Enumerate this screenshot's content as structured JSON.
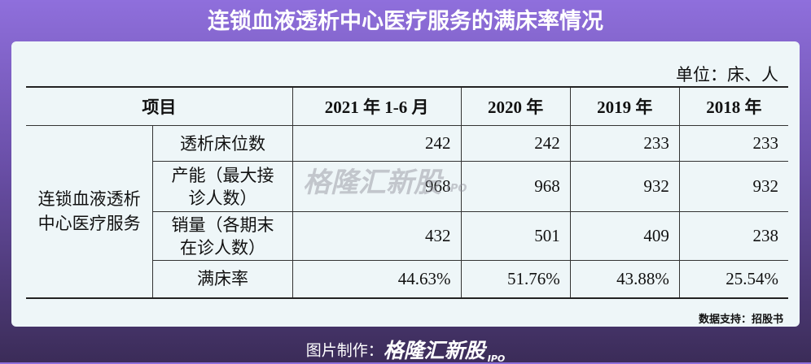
{
  "title": "连锁血液透析中心医疗服务的满床率情况",
  "unit": "单位：床、人",
  "table": {
    "header": [
      "项目",
      "2021 年 1-6 月",
      "2020 年",
      "2019 年",
      "2018 年"
    ],
    "group": "连锁血液透析中心医疗服务",
    "rows": [
      [
        "透析床位数",
        "242",
        "242",
        "233",
        "233"
      ],
      [
        "产能（最大接诊人数）",
        "968",
        "968",
        "932",
        "932"
      ],
      [
        "销量（各期末在诊人数）",
        "432",
        "501",
        "409",
        "238"
      ],
      [
        "满床率",
        "44.63%",
        "51.76%",
        "43.88%",
        "25.54%"
      ]
    ]
  },
  "watermark": {
    "name": "格隆汇新股",
    "tag": "IPO"
  },
  "source": "数据支持：招股书",
  "footer": {
    "label": "图片制作：",
    "logo": "格隆汇新股",
    "tag": "IPO"
  }
}
